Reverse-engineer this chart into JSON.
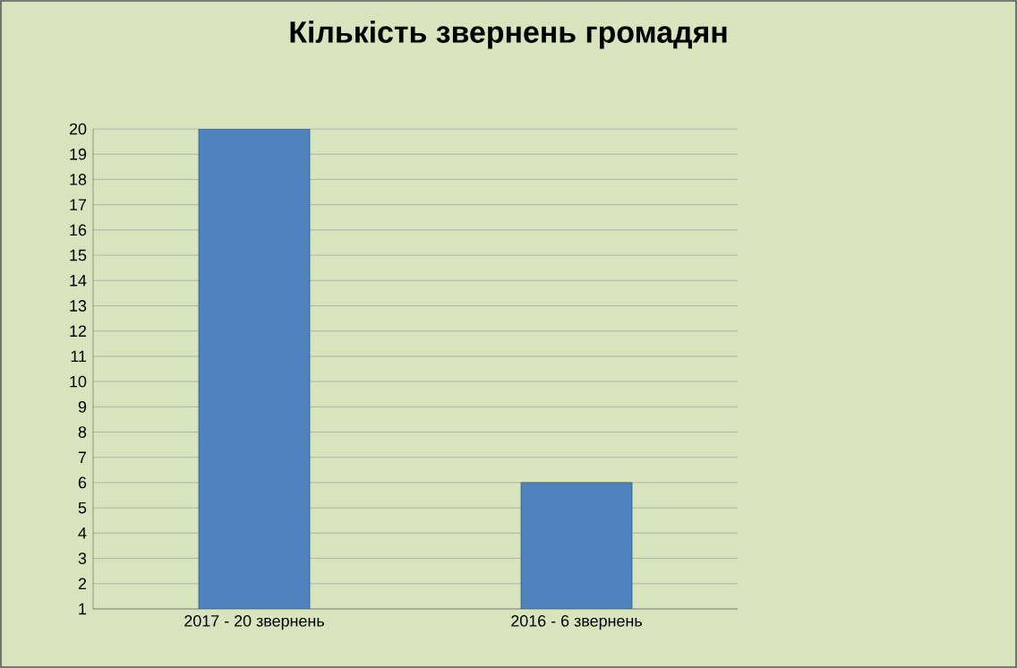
{
  "chart_data": {
    "type": "bar",
    "title": "Кількість звернень громадян",
    "categories": [
      "2017 - 20 звернень",
      "2016 - 6 звернень"
    ],
    "values": [
      20,
      6
    ],
    "color": "#4f81bd",
    "ylim": [
      1,
      20
    ],
    "yticks": [
      1,
      2,
      3,
      4,
      5,
      6,
      7,
      8,
      9,
      10,
      11,
      12,
      13,
      14,
      15,
      16,
      17,
      18,
      19,
      20
    ],
    "grid": "y"
  }
}
